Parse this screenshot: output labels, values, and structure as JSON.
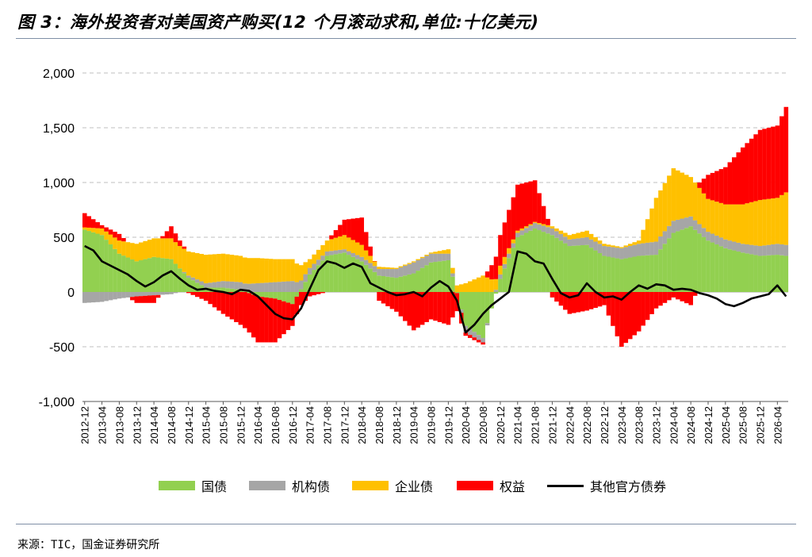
{
  "title": "图 3：海外投资者对美国资产购买(12 个月滚动求和,单位:十亿美元)",
  "source": "来源：TIC，国金证券研究所",
  "colors": {
    "govt": "#92d050",
    "agency": "#a6a6a6",
    "corp": "#ffc000",
    "equity": "#ff0000",
    "official": "#000000"
  },
  "chart_data": {
    "type": "area",
    "stacked": true,
    "title": "图 3：海外投资者对美国资产购买(12 个月滚动求和,单位:十亿美元)",
    "xlabel": "",
    "ylabel": "",
    "ylim": [
      -1000,
      2000
    ],
    "yticks": [
      -1000,
      -500,
      0,
      500,
      1000,
      1500,
      2000
    ],
    "ytick_labels": [
      "-1,000",
      "-500",
      "0",
      "500",
      "1,000",
      "1,500",
      "2,000"
    ],
    "x_start": "2012-12",
    "x_end": "2026-06",
    "xtick_labels": [
      "2012-12",
      "2013-04",
      "2013-08",
      "2013-12",
      "2014-04",
      "2014-08",
      "2014-12",
      "2015-04",
      "2015-08",
      "2015-12",
      "2016-04",
      "2016-08",
      "2016-12",
      "2017-04",
      "2017-08",
      "2017-12",
      "2018-04",
      "2018-08",
      "2018-12",
      "2019-04",
      "2019-08",
      "2019-12",
      "2020-04",
      "2020-08",
      "2020-12",
      "2021-04",
      "2021-08",
      "2021-12",
      "2022-04",
      "2022-08",
      "2022-12",
      "2023-04",
      "2023-08",
      "2023-12",
      "2024-04",
      "2024-08",
      "2024-12",
      "2025-04",
      "2025-08",
      "2025-12",
      "2026-04"
    ],
    "grid": true,
    "legend_position": "bottom",
    "series": [
      {
        "name": "国债",
        "kind": "bar",
        "x": [
          "2012-12",
          "2013-04",
          "2013-08",
          "2013-12",
          "2014-04",
          "2014-08",
          "2014-12",
          "2015-04",
          "2015-08",
          "2015-12",
          "2016-04",
          "2016-08",
          "2016-12",
          "2017-04",
          "2017-08",
          "2017-12",
          "2018-04",
          "2018-08",
          "2018-12",
          "2019-04",
          "2019-08",
          "2019-12",
          "2020-04",
          "2020-08",
          "2020-12",
          "2021-04",
          "2021-08",
          "2021-12",
          "2022-04",
          "2022-08",
          "2022-12",
          "2023-04",
          "2023-08",
          "2023-12",
          "2024-04",
          "2024-08",
          "2024-12",
          "2025-04",
          "2025-08",
          "2025-12",
          "2026-04",
          "2026-06"
        ],
        "values": [
          570,
          520,
          350,
          280,
          320,
          300,
          130,
          40,
          40,
          20,
          -40,
          -60,
          -110,
          160,
          330,
          360,
          280,
          150,
          130,
          170,
          270,
          290,
          -310,
          -420,
          120,
          500,
          580,
          520,
          420,
          430,
          330,
          300,
          330,
          340,
          540,
          600,
          470,
          400,
          360,
          330,
          340,
          330
        ]
      },
      {
        "name": "机构债",
        "kind": "bar",
        "x": [
          "2012-12",
          "2013-04",
          "2013-08",
          "2013-12",
          "2014-04",
          "2014-08",
          "2014-12",
          "2015-04",
          "2015-08",
          "2015-12",
          "2016-04",
          "2016-08",
          "2016-12",
          "2017-04",
          "2017-08",
          "2017-12",
          "2018-04",
          "2018-08",
          "2018-12",
          "2019-04",
          "2019-08",
          "2019-12",
          "2020-04",
          "2020-08",
          "2020-12",
          "2021-04",
          "2021-08",
          "2021-12",
          "2022-04",
          "2022-08",
          "2022-12",
          "2023-04",
          "2023-08",
          "2023-12",
          "2024-04",
          "2024-08",
          "2024-12",
          "2025-04",
          "2025-08",
          "2025-12",
          "2026-04",
          "2026-06"
        ],
        "values": [
          -100,
          -90,
          -60,
          -40,
          -30,
          -20,
          20,
          40,
          60,
          70,
          80,
          90,
          100,
          60,
          40,
          30,
          40,
          60,
          80,
          100,
          80,
          60,
          -60,
          -40,
          40,
          40,
          50,
          60,
          60,
          70,
          90,
          100,
          110,
          120,
          110,
          90,
          80,
          80,
          80,
          90,
          100,
          100
        ]
      },
      {
        "name": "企业债",
        "kind": "bar",
        "x": [
          "2012-12",
          "2013-04",
          "2013-08",
          "2013-12",
          "2014-04",
          "2014-08",
          "2014-12",
          "2015-04",
          "2015-08",
          "2015-12",
          "2016-04",
          "2016-08",
          "2016-12",
          "2017-04",
          "2017-08",
          "2017-12",
          "2018-04",
          "2018-08",
          "2018-12",
          "2019-04",
          "2019-08",
          "2019-12",
          "2020-04",
          "2020-08",
          "2020-12",
          "2021-04",
          "2021-08",
          "2021-12",
          "2022-04",
          "2022-08",
          "2022-12",
          "2023-04",
          "2023-08",
          "2023-12",
          "2024-04",
          "2024-08",
          "2024-12",
          "2025-04",
          "2025-08",
          "2025-12",
          "2026-04",
          "2026-06"
        ],
        "values": [
          20,
          60,
          120,
          160,
          170,
          190,
          220,
          260,
          250,
          240,
          230,
          210,
          200,
          80,
          100,
          130,
          110,
          20,
          10,
          10,
          10,
          40,
          80,
          150,
          80,
          20,
          10,
          20,
          40,
          60,
          20,
          10,
          30,
          400,
          480,
          360,
          300,
          320,
          360,
          420,
          420,
          480
        ]
      },
      {
        "name": "权益",
        "kind": "bar",
        "x": [
          "2012-12",
          "2013-04",
          "2013-08",
          "2013-12",
          "2014-04",
          "2014-08",
          "2014-12",
          "2015-04",
          "2015-08",
          "2015-12",
          "2016-04",
          "2016-08",
          "2016-12",
          "2017-04",
          "2017-08",
          "2017-12",
          "2018-04",
          "2018-08",
          "2018-12",
          "2019-04",
          "2019-08",
          "2019-12",
          "2020-04",
          "2020-08",
          "2020-12",
          "2021-04",
          "2021-08",
          "2021-12",
          "2022-04",
          "2022-08",
          "2022-12",
          "2023-04",
          "2023-08",
          "2023-12",
          "2024-04",
          "2024-08",
          "2024-12",
          "2025-04",
          "2025-08",
          "2025-12",
          "2026-04",
          "2026-06"
        ],
        "values": [
          130,
          30,
          60,
          -60,
          -70,
          110,
          -10,
          -80,
          -200,
          -300,
          -420,
          -400,
          -200,
          -40,
          0,
          140,
          250,
          -80,
          -180,
          -350,
          -250,
          -300,
          -30,
          -20,
          280,
          420,
          380,
          -50,
          -200,
          -170,
          -120,
          -500,
          -360,
          -150,
          -50,
          -120,
          220,
          340,
          520,
          640,
          660,
          780
        ]
      },
      {
        "name": "其他官方债券",
        "kind": "line",
        "x": [
          "2012-12",
          "2013-02",
          "2013-04",
          "2013-06",
          "2013-08",
          "2013-10",
          "2013-12",
          "2014-02",
          "2014-04",
          "2014-06",
          "2014-08",
          "2014-10",
          "2014-12",
          "2015-02",
          "2015-04",
          "2015-06",
          "2015-08",
          "2015-10",
          "2015-12",
          "2016-02",
          "2016-04",
          "2016-06",
          "2016-08",
          "2016-10",
          "2016-12",
          "2017-02",
          "2017-04",
          "2017-06",
          "2017-08",
          "2017-10",
          "2017-12",
          "2018-02",
          "2018-04",
          "2018-06",
          "2018-08",
          "2018-10",
          "2018-12",
          "2019-02",
          "2019-04",
          "2019-06",
          "2019-08",
          "2019-10",
          "2019-12",
          "2020-02",
          "2020-04",
          "2020-06",
          "2020-08",
          "2020-10",
          "2020-12",
          "2021-02",
          "2021-04",
          "2021-06",
          "2021-08",
          "2021-10",
          "2021-12",
          "2022-02",
          "2022-04",
          "2022-06",
          "2022-08",
          "2022-10",
          "2022-12",
          "2023-02",
          "2023-04",
          "2023-06",
          "2023-08",
          "2023-10",
          "2023-12",
          "2024-02",
          "2024-04",
          "2024-06",
          "2024-08",
          "2024-10",
          "2024-12",
          "2025-02",
          "2025-04",
          "2025-06",
          "2025-08",
          "2025-10",
          "2025-12",
          "2026-02",
          "2026-04",
          "2026-06"
        ],
        "values": [
          420,
          380,
          280,
          240,
          200,
          160,
          100,
          50,
          90,
          150,
          190,
          120,
          60,
          20,
          30,
          10,
          0,
          -20,
          20,
          10,
          -40,
          -120,
          -200,
          -240,
          -250,
          -150,
          30,
          200,
          280,
          260,
          220,
          260,
          230,
          80,
          40,
          0,
          -30,
          -20,
          0,
          -40,
          40,
          100,
          50,
          -80,
          -370,
          -300,
          -200,
          -120,
          -60,
          0,
          370,
          350,
          280,
          260,
          120,
          -10,
          -50,
          -30,
          80,
          0,
          -50,
          -40,
          -70,
          0,
          60,
          30,
          70,
          60,
          20,
          30,
          20,
          -10,
          -30,
          -60,
          -110,
          -130,
          -100,
          -60,
          -40,
          -20,
          60,
          -40
        ]
      }
    ]
  }
}
